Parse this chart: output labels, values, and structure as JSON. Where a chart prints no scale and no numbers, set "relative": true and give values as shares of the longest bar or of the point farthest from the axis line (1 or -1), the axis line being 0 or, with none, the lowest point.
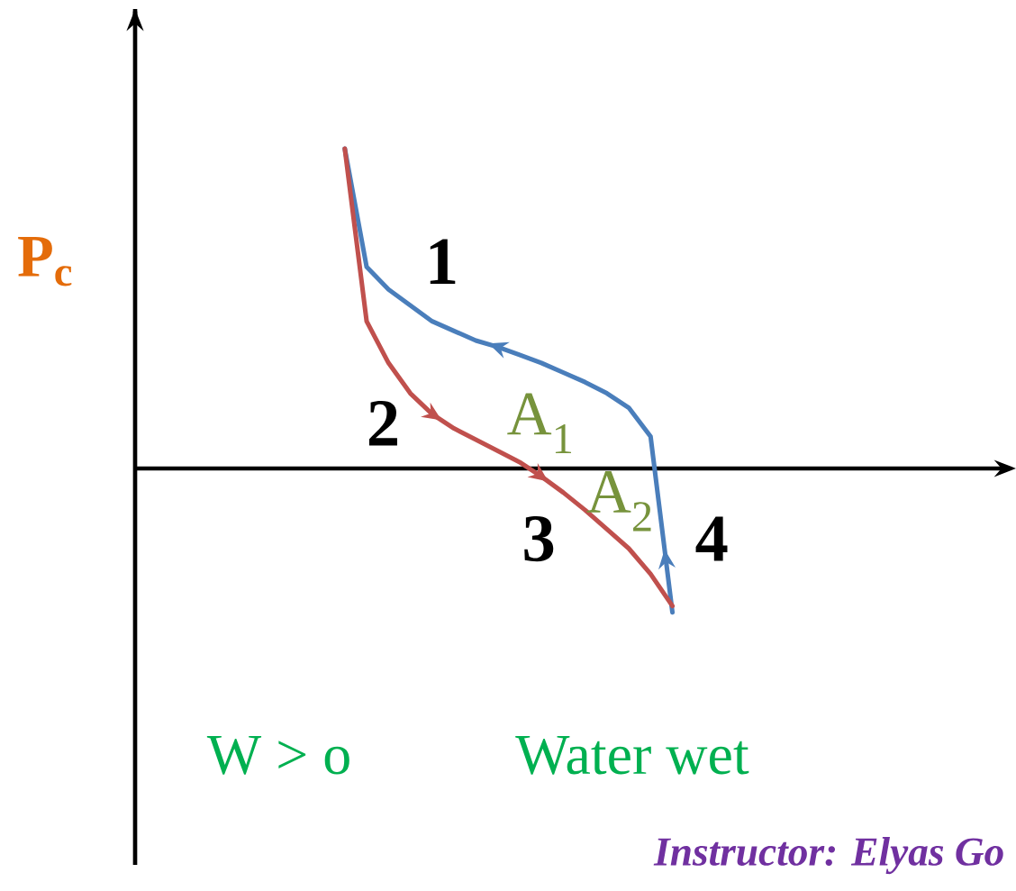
{
  "chart_data": {
    "type": "line",
    "relative": true,
    "ylabel": "P$_{c}$",
    "categories": [
      null,
      null,
      null,
      null,
      null,
      null,
      null,
      null,
      null,
      null,
      null,
      null,
      null,
      null,
      null,
      null
    ],
    "series": [
      {
        "color": "#4a7ebb",
        "values": [
          1.0,
          0.63,
          0.56,
          0.51,
          0.46,
          0.43,
          0.4,
          0.38,
          0.355,
          0.33,
          0.3,
          0.27,
          0.235,
          0.19,
          0.1,
          -0.45
        ]
      },
      {
        "color": "#c0504d",
        "values": [
          1.0,
          0.46,
          0.33,
          0.235,
          0.17,
          0.125,
          0.09,
          0.055,
          0.02,
          -0.025,
          -0.075,
          -0.13,
          -0.19,
          -0.25,
          -0.33,
          -0.43
        ]
      }
    ],
    "annotations": [
      "1",
      "2",
      "3",
      "4",
      "A$_{1}$",
      "A$_{2}$",
      "W > o",
      "Water wet",
      "Instructor: Elyas Go"
    ]
  }
}
